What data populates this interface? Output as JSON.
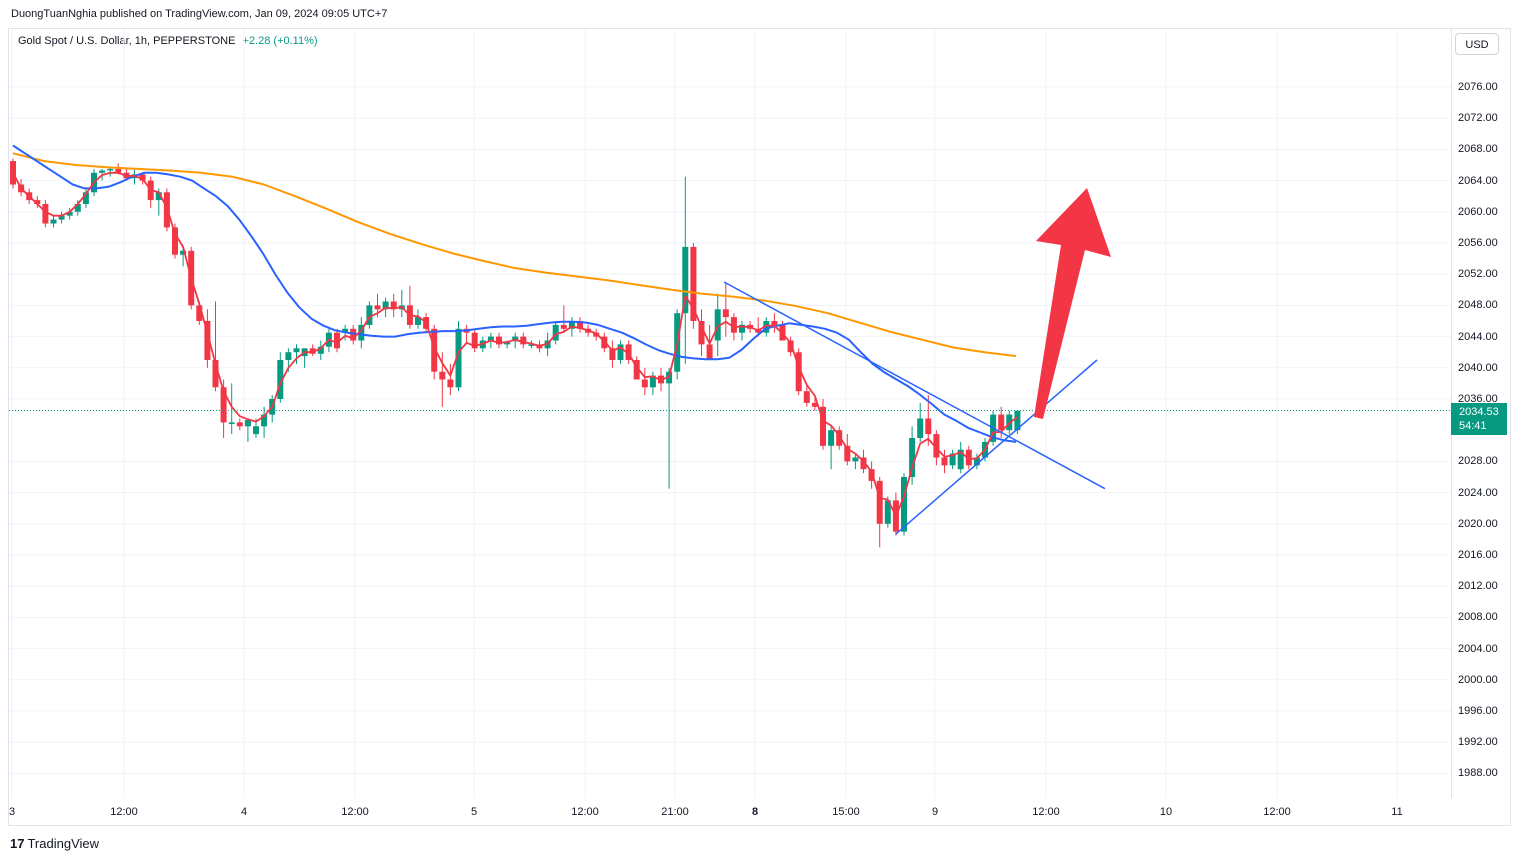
{
  "caption": "DuongTuanNghia published on TradingView.com, Jan 09, 2024 09:05 UTC+7",
  "legend": {
    "symbol": "Gold Spot / U.S. Dollar, 1h, PEPPERSTONE",
    "change": "+2.28 (+0.11%)"
  },
  "currency_button": "USD",
  "current_price": {
    "price": "2034.53",
    "countdown": "54:41"
  },
  "brand": {
    "mark": "17",
    "name": "TradingView"
  },
  "colors": {
    "up": "#089981",
    "down": "#f23645",
    "ema_fast": "#f23645",
    "ema_mid": "#2962ff",
    "ema_slow": "#ff9800",
    "annotation_arrow": "#f23645",
    "trendline": "#2962ff"
  },
  "chart_data": {
    "type": "candlestick",
    "title": "Gold Spot / U.S. Dollar, 1h, PEPPERSTONE",
    "price_ticks": [
      "2076.00",
      "2072.00",
      "2068.00",
      "2064.00",
      "2060.00",
      "2056.00",
      "2052.00",
      "2048.00",
      "2044.00",
      "2040.00",
      "2036.00",
      "2028.00",
      "2024.00",
      "2020.00",
      "2016.00",
      "2012.00",
      "2008.00",
      "2004.00",
      "2000.00",
      "1996.00",
      "1992.00",
      "1988.00"
    ],
    "time_ticks": [
      {
        "label": "3",
        "bold": false
      },
      {
        "label": "12:00",
        "bold": false
      },
      {
        "label": "4",
        "bold": false
      },
      {
        "label": "12:00",
        "bold": false
      },
      {
        "label": "5",
        "bold": false
      },
      {
        "label": "12:00",
        "bold": false
      },
      {
        "label": "21:00",
        "bold": false
      },
      {
        "label": "8",
        "bold": true
      },
      {
        "label": "15:00",
        "bold": false
      },
      {
        "label": "9",
        "bold": false
      },
      {
        "label": "12:00",
        "bold": false
      },
      {
        "label": "10",
        "bold": false
      },
      {
        "label": "12:00",
        "bold": false
      },
      {
        "label": "11",
        "bold": false
      }
    ],
    "ylim": [
      1986,
      2080
    ],
    "candles": [
      [
        2066.5,
        2066.8,
        2063.0,
        2063.5
      ],
      [
        2063.5,
        2064.2,
        2062.0,
        2062.5
      ],
      [
        2062.5,
        2063.0,
        2061.0,
        2061.5
      ],
      [
        2061.5,
        2062.0,
        2060.5,
        2061.0
      ],
      [
        2061.0,
        2061.5,
        2058.0,
        2058.5
      ],
      [
        2058.5,
        2059.5,
        2058.0,
        2059.0
      ],
      [
        2059.0,
        2060.0,
        2058.5,
        2059.5
      ],
      [
        2059.5,
        2060.5,
        2059.0,
        2060.0
      ],
      [
        2060.0,
        2061.5,
        2059.5,
        2061.0
      ],
      [
        2061.0,
        2063.0,
        2060.5,
        2062.5
      ],
      [
        2062.5,
        2065.5,
        2062.0,
        2065.0
      ],
      [
        2065.0,
        2065.5,
        2064.0,
        2065.3
      ],
      [
        2065.3,
        2065.8,
        2064.5,
        2065.5
      ],
      [
        2065.5,
        2066.2,
        2064.8,
        2065.0
      ],
      [
        2065.0,
        2065.5,
        2064.0,
        2064.3
      ],
      [
        2064.3,
        2065.5,
        2063.5,
        2064.8
      ],
      [
        2064.8,
        2065.0,
        2063.5,
        2064.0
      ],
      [
        2064.0,
        2064.5,
        2060.5,
        2061.5
      ],
      [
        2061.5,
        2063.0,
        2059.5,
        2062.5
      ],
      [
        2062.5,
        2063.0,
        2057.5,
        2058.0
      ],
      [
        2058.0,
        2058.5,
        2054.0,
        2054.5
      ],
      [
        2054.5,
        2055.5,
        2053.0,
        2055.0
      ],
      [
        2055.0,
        2055.5,
        2047.5,
        2048.0
      ],
      [
        2048.0,
        2048.5,
        2045.5,
        2046.0
      ],
      [
        2046.0,
        2047.5,
        2040.0,
        2041.0
      ],
      [
        2041.0,
        2048.5,
        2037.0,
        2037.5
      ],
      [
        2037.5,
        2038.5,
        2031.0,
        2033.0
      ],
      [
        2033.0,
        2038.0,
        2031.5,
        2033.0
      ],
      [
        2033.0,
        2033.5,
        2032.0,
        2032.5
      ],
      [
        2032.5,
        2033.5,
        2030.5,
        2033.3
      ],
      [
        2031.5,
        2033.5,
        2031.0,
        2032.5
      ],
      [
        2032.5,
        2035.0,
        2031.0,
        2034.0
      ],
      [
        2034.0,
        2036.5,
        2033.0,
        2036.0
      ],
      [
        2036.0,
        2042.0,
        2035.5,
        2041.0
      ],
      [
        2041.0,
        2042.5,
        2039.5,
        2042.0
      ],
      [
        2042.0,
        2043.0,
        2040.5,
        2042.5
      ],
      [
        2041.5,
        2042.5,
        2040.0,
        2042.5
      ],
      [
        2042.5,
        2043.0,
        2041.5,
        2041.8
      ],
      [
        2041.8,
        2043.5,
        2041.0,
        2042.7
      ],
      [
        2042.7,
        2045.0,
        2042.0,
        2044.5
      ],
      [
        2044.5,
        2045.0,
        2042.0,
        2042.5
      ],
      [
        2044.5,
        2045.5,
        2043.5,
        2045.0
      ],
      [
        2045.0,
        2045.5,
        2043.0,
        2043.5
      ],
      [
        2043.5,
        2046.5,
        2042.5,
        2045.5
      ],
      [
        2045.5,
        2048.5,
        2045.0,
        2048.0
      ],
      [
        2048.0,
        2049.5,
        2046.5,
        2047.5
      ],
      [
        2047.5,
        2049.0,
        2046.5,
        2048.5
      ],
      [
        2048.5,
        2049.5,
        2046.5,
        2047.5
      ],
      [
        2047.5,
        2050.0,
        2046.5,
        2048.0
      ],
      [
        2048.0,
        2050.5,
        2045.0,
        2045.5
      ],
      [
        2045.5,
        2047.5,
        2045.0,
        2046.5
      ],
      [
        2046.5,
        2047.0,
        2044.5,
        2045.0
      ],
      [
        2045.0,
        2045.5,
        2038.5,
        2039.5
      ],
      [
        2039.5,
        2042.0,
        2035.0,
        2038.5
      ],
      [
        2038.5,
        2040.5,
        2036.5,
        2037.5
      ],
      [
        2037.5,
        2046.0,
        2037.0,
        2045.0
      ],
      [
        2045.0,
        2045.5,
        2043.0,
        2044.5
      ],
      [
        2044.5,
        2045.0,
        2042.0,
        2042.5
      ],
      [
        2042.5,
        2044.0,
        2042.0,
        2043.5
      ],
      [
        2043.5,
        2044.5,
        2042.5,
        2044.0
      ],
      [
        2044.0,
        2044.5,
        2042.5,
        2043.0
      ],
      [
        2043.0,
        2043.5,
        2042.5,
        2043.4
      ],
      [
        2043.4,
        2044.5,
        2042.5,
        2044.0
      ],
      [
        2044.0,
        2044.5,
        2042.5,
        2043.0
      ],
      [
        2043.0,
        2043.5,
        2042.5,
        2043.0
      ],
      [
        2043.0,
        2043.5,
        2042.0,
        2042.5
      ],
      [
        2042.5,
        2044.5,
        2041.5,
        2043.5
      ],
      [
        2043.5,
        2046.0,
        2043.0,
        2045.5
      ],
      [
        2045.5,
        2048.0,
        2044.5,
        2045.0
      ],
      [
        2045.0,
        2046.5,
        2044.0,
        2046.0
      ],
      [
        2046.0,
        2046.5,
        2044.5,
        2045.0
      ],
      [
        2045.0,
        2045.5,
        2044.0,
        2044.5
      ],
      [
        2044.5,
        2045.0,
        2043.5,
        2044.0
      ],
      [
        2044.0,
        2044.5,
        2042.0,
        2042.5
      ],
      [
        2042.5,
        2043.5,
        2040.0,
        2041.0
      ],
      [
        2041.0,
        2043.5,
        2040.5,
        2043.0
      ],
      [
        2043.0,
        2043.5,
        2040.5,
        2041.0
      ],
      [
        2041.0,
        2041.5,
        2038.5,
        2038.5
      ],
      [
        2038.5,
        2040.0,
        2036.5,
        2037.5
      ],
      [
        2037.5,
        2039.5,
        2036.5,
        2039.0
      ],
      [
        2039.0,
        2040.0,
        2037.0,
        2038.0
      ],
      [
        2038.0,
        2040.0,
        2024.5,
        2039.5
      ],
      [
        2039.5,
        2047.5,
        2038.5,
        2047.0
      ],
      [
        2047.0,
        2064.5,
        2040.5,
        2055.5
      ],
      [
        2055.5,
        2056.0,
        2045.0,
        2046.0
      ],
      [
        2046.0,
        2047.5,
        2041.5,
        2043.0
      ],
      [
        2043.0,
        2045.5,
        2041.0,
        2041.0
      ],
      [
        2043.5,
        2049.5,
        2041.5,
        2047.5
      ],
      [
        2047.5,
        2051.0,
        2044.0,
        2046.5
      ],
      [
        2046.5,
        2047.0,
        2043.5,
        2044.5
      ],
      [
        2044.5,
        2046.0,
        2043.5,
        2045.5
      ],
      [
        2045.5,
        2046.0,
        2044.5,
        2045.0
      ],
      [
        2045.0,
        2046.5,
        2044.0,
        2044.5
      ],
      [
        2044.5,
        2046.5,
        2044.0,
        2046.0
      ],
      [
        2046.0,
        2047.0,
        2044.5,
        2045.5
      ],
      [
        2045.5,
        2046.0,
        2043.5,
        2043.5
      ],
      [
        2043.5,
        2044.0,
        2041.5,
        2042.0
      ],
      [
        2042.0,
        2042.5,
        2036.5,
        2037.0
      ],
      [
        2037.0,
        2038.0,
        2035.0,
        2035.5
      ],
      [
        2035.5,
        2036.5,
        2034.5,
        2035.0
      ],
      [
        2035.0,
        2036.0,
        2029.5,
        2030.0
      ],
      [
        2030.0,
        2032.5,
        2027.0,
        2032.0
      ],
      [
        2032.0,
        2032.5,
        2029.5,
        2030.0
      ],
      [
        2030.0,
        2031.5,
        2027.5,
        2028.0
      ],
      [
        2028.0,
        2029.0,
        2027.0,
        2028.5
      ],
      [
        2028.5,
        2029.5,
        2026.5,
        2027.0
      ],
      [
        2027.0,
        2028.0,
        2024.5,
        2025.5
      ],
      [
        2025.5,
        2026.0,
        2017.0,
        2020.0
      ],
      [
        2020.0,
        2023.5,
        2019.5,
        2023.0
      ],
      [
        2023.0,
        2024.0,
        2018.5,
        2019.0
      ],
      [
        2019.0,
        2026.5,
        2018.5,
        2026.0
      ],
      [
        2026.0,
        2032.5,
        2025.0,
        2031.0
      ],
      [
        2031.0,
        2035.5,
        2030.5,
        2033.5
      ],
      [
        2033.5,
        2036.5,
        2030.0,
        2031.5
      ],
      [
        2031.5,
        2032.0,
        2027.5,
        2028.5
      ],
      [
        2028.5,
        2029.5,
        2026.5,
        2027.5
      ],
      [
        2027.5,
        2029.5,
        2027.0,
        2029.0
      ],
      [
        2027.0,
        2030.5,
        2026.5,
        2029.5
      ],
      [
        2029.5,
        2030.0,
        2027.0,
        2027.5
      ],
      [
        2027.5,
        2029.0,
        2027.0,
        2028.5
      ],
      [
        2028.5,
        2031.0,
        2028.0,
        2030.5
      ],
      [
        2030.5,
        2034.5,
        2030.0,
        2034.0
      ],
      [
        2034.0,
        2035.0,
        2031.0,
        2032.0
      ],
      [
        2032.0,
        2034.5,
        2031.5,
        2034.0
      ],
      [
        2032.0,
        2034.5,
        2031.5,
        2034.5
      ]
    ],
    "ema_fast": [
      2065.0,
      2063.0,
      2062.0,
      2061.0,
      2060.0,
      2059.5,
      2059.5,
      2060.0,
      2061.0,
      2062.3,
      2063.8,
      2064.7,
      2065.0,
      2065.0,
      2064.6,
      2064.6,
      2064.2,
      2062.8,
      2062.5,
      2060.5,
      2057.2,
      2055.5,
      2051.5,
      2048.2,
      2044.5,
      2040.5,
      2037.0,
      2035.0,
      2033.8,
      2033.4,
      2033.1,
      2033.8,
      2035.0,
      2038.0,
      2040.0,
      2041.2,
      2042.0,
      2042.0,
      2042.5,
      2043.6,
      2043.2,
      2044.1,
      2043.8,
      2044.8,
      2046.5,
      2047.0,
      2047.7,
      2047.6,
      2047.8,
      2046.7,
      2046.6,
      2045.8,
      2042.6,
      2040.6,
      2039.0,
      2042.0,
      2043.2,
      2042.8,
      2043.1,
      2043.5,
      2043.2,
      2043.3,
      2043.6,
      2043.3,
      2043.1,
      2042.8,
      2043.1,
      2044.3,
      2044.6,
      2045.3,
      2045.1,
      2044.8,
      2044.4,
      2043.4,
      2042.2,
      2042.6,
      2041.8,
      2040.1,
      2038.8,
      2038.9,
      2038.4,
      2038.9,
      2043.0,
      2049.2,
      2047.6,
      2045.3,
      2043.1,
      2045.3,
      2045.9,
      2045.2,
      2045.3,
      2045.2,
      2044.8,
      2045.4,
      2045.4,
      2044.4,
      2043.2,
      2040.1,
      2037.8,
      2036.4,
      2033.2,
      2032.6,
      2031.3,
      2029.6,
      2029.0,
      2028.0,
      2026.7,
      2023.3,
      2023.1,
      2021.0,
      2023.5,
      2027.2,
      2030.3,
      2030.9,
      2029.7,
      2028.6,
      2028.8,
      2029.2,
      2028.3,
      2028.4,
      2029.5,
      2031.7,
      2031.8,
      2032.9,
      2033.7
    ],
    "ema_mid": [
      2068.5,
      2067.5,
      2066.5,
      2065.5,
      2064.5,
      2063.5,
      2063.0,
      2063.0,
      2063.2,
      2063.8,
      2064.5,
      2065.0,
      2065.0,
      2064.8,
      2064.5,
      2064.0,
      2063.0,
      2062.0,
      2060.7,
      2058.9,
      2056.8,
      2054.5,
      2051.9,
      2049.6,
      2047.7,
      2046.3,
      2045.4,
      2044.8,
      2044.5,
      2044.3,
      2044.1,
      2044.0,
      2044.0,
      2044.3,
      2044.5,
      2044.6,
      2044.7,
      2044.7,
      2044.8,
      2045.0,
      2045.2,
      2045.3,
      2045.3,
      2045.4,
      2045.6,
      2045.8,
      2045.9,
      2045.9,
      2045.8,
      2045.5,
      2045.0,
      2044.5,
      2043.8,
      2043.0,
      2042.3,
      2041.8,
      2041.4,
      2041.2,
      2041.1,
      2041.1,
      2041.3,
      2042.3,
      2043.7,
      2045.0,
      2045.4,
      2045.7,
      2045.5,
      2045.3,
      2045.0,
      2044.5,
      2043.6,
      2042.0,
      2040.5,
      2039.4,
      2038.5,
      2037.6,
      2036.5,
      2035.3,
      2034.0,
      2033.2,
      2032.3,
      2031.7,
      2031.1,
      2030.7,
      2030.5
    ],
    "ema_slow": [
      2067.5,
      2066.5,
      2066.0,
      2065.7,
      2065.5,
      2065.3,
      2065.0,
      2064.5,
      2063.5,
      2062.0,
      2060.4,
      2058.7,
      2057.2,
      2055.9,
      2054.7,
      2053.7,
      2052.8,
      2052.2,
      2051.7,
      2051.2,
      2050.6,
      2050.0,
      2049.5,
      2049.1,
      2048.6,
      2047.9,
      2047.0,
      2045.8,
      2044.6,
      2043.6,
      2042.6,
      2042.0,
      2041.5
    ]
  },
  "annotations": {
    "arrow_direction": "up",
    "trendlines": 2
  }
}
